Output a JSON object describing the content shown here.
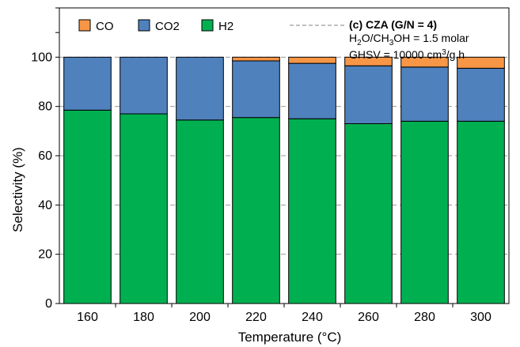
{
  "chart_data": {
    "type": "bar",
    "stacked": true,
    "title": "",
    "xlabel": "Temperature (°C)",
    "ylabel": "Selectivity (%)",
    "ylim": [
      0,
      120
    ],
    "yticks": [
      0,
      20,
      40,
      60,
      80,
      100
    ],
    "grid": true,
    "legend_position": "top-left",
    "categories": [
      "160",
      "180",
      "200",
      "220",
      "240",
      "260",
      "280",
      "300"
    ],
    "series": [
      {
        "name": "H2",
        "color": "#00b050",
        "values": [
          78.5,
          77,
          74.5,
          75.5,
          75,
          73,
          74,
          74
        ]
      },
      {
        "name": "CO2",
        "color": "#4f81bd",
        "values": [
          21.5,
          23,
          25.5,
          23,
          22.5,
          23.5,
          22,
          21.5
        ]
      },
      {
        "name": "CO",
        "color": "#f79646",
        "values": [
          0,
          0,
          0,
          1.5,
          2.5,
          3.5,
          4,
          4.5
        ]
      }
    ],
    "legend_order": [
      "CO",
      "CO2",
      "H2"
    ],
    "annotation": {
      "label": "(c) CZA (G/N = 4)",
      "line2_parts": [
        "H",
        "2",
        "O/CH",
        "3",
        "OH = 1.5 molar"
      ],
      "line3_parts": [
        "GHSV = 10000 cm",
        "3",
        "/g.h"
      ]
    }
  }
}
